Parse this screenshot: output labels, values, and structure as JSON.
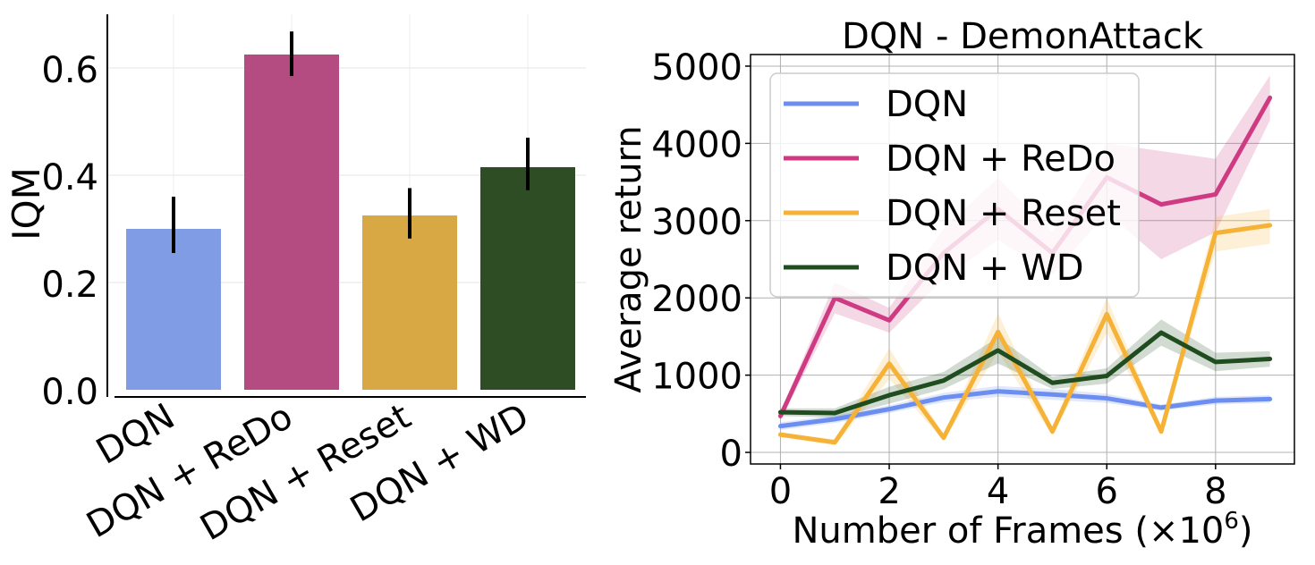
{
  "chart_data": [
    {
      "type": "bar",
      "title": "",
      "xlabel": "",
      "ylabel": "IQM",
      "categories": [
        "DQN",
        "DQN + ReDo",
        "DQN + Reset",
        "DQN + WD"
      ],
      "values": [
        0.3,
        0.625,
        0.325,
        0.415
      ],
      "ci_low": [
        0.255,
        0.585,
        0.282,
        0.372
      ],
      "ci_high": [
        0.36,
        0.668,
        0.376,
        0.47
      ],
      "colors": [
        "#809cE5",
        "#b44c82",
        "#d8a845",
        "#2e4d24"
      ],
      "ylim": [
        0,
        0.7
      ],
      "yticks": [
        0.0,
        0.2,
        0.4,
        0.6
      ],
      "ytick_labels": [
        "0.0",
        "0.2",
        "0.4",
        "0.6"
      ],
      "grid": true
    },
    {
      "type": "line",
      "title": "DQN - DemonAttack",
      "xlabel_prefix": "Number of Frames (×10",
      "xlabel_exp": "6",
      "xlabel_suffix": ")",
      "ylabel": "Average return",
      "x": [
        0,
        1,
        2,
        3,
        4,
        5,
        6,
        7,
        8,
        9
      ],
      "xlim": [
        -0.55,
        9.45
      ],
      "ylim": [
        -150,
        5150
      ],
      "xticks": [
        0,
        2,
        4,
        6,
        8
      ],
      "xtick_labels": [
        "0",
        "2",
        "4",
        "6",
        "8"
      ],
      "yticks": [
        0,
        1000,
        2000,
        3000,
        4000,
        5000
      ],
      "ytick_labels": [
        "0",
        "1000",
        "2000",
        "3000",
        "4000",
        "5000"
      ],
      "grid": true,
      "legend_position": "top-left",
      "series": [
        {
          "name": "DQN",
          "color": "#6b8ef0",
          "values": [
            340,
            430,
            560,
            710,
            790,
            750,
            700,
            580,
            670,
            690
          ],
          "lower": [
            290,
            380,
            510,
            650,
            720,
            680,
            640,
            540,
            620,
            640
          ],
          "upper": [
            390,
            480,
            610,
            770,
            860,
            820,
            760,
            620,
            720,
            740
          ]
        },
        {
          "name": "DQN + ReDo",
          "color": "#cf3b82",
          "values": [
            470,
            2000,
            1710,
            2580,
            3150,
            2580,
            3560,
            3210,
            3340,
            4590
          ],
          "lower": [
            420,
            1800,
            1550,
            2250,
            2750,
            2300,
            3100,
            2500,
            2850,
            4300
          ],
          "upper": [
            520,
            2200,
            1870,
            2900,
            3550,
            2850,
            4000,
            3900,
            3800,
            4880
          ]
        },
        {
          "name": "DQN + Reset",
          "color": "#f5b236",
          "values": [
            230,
            130,
            1150,
            190,
            1560,
            270,
            1790,
            270,
            2840,
            2940
          ],
          "lower": [
            200,
            90,
            950,
            150,
            1300,
            220,
            1550,
            230,
            2600,
            2700
          ],
          "upper": [
            260,
            170,
            1350,
            230,
            1800,
            320,
            2000,
            310,
            3050,
            3150
          ]
        },
        {
          "name": "DQN + WD",
          "color": "#1f4d1f",
          "values": [
            520,
            510,
            740,
            930,
            1320,
            900,
            990,
            1550,
            1170,
            1210
          ],
          "lower": [
            470,
            450,
            630,
            820,
            1150,
            820,
            890,
            1380,
            1050,
            1110
          ],
          "upper": [
            570,
            570,
            850,
            1040,
            1490,
            980,
            1090,
            1720,
            1290,
            1310
          ]
        }
      ]
    }
  ]
}
